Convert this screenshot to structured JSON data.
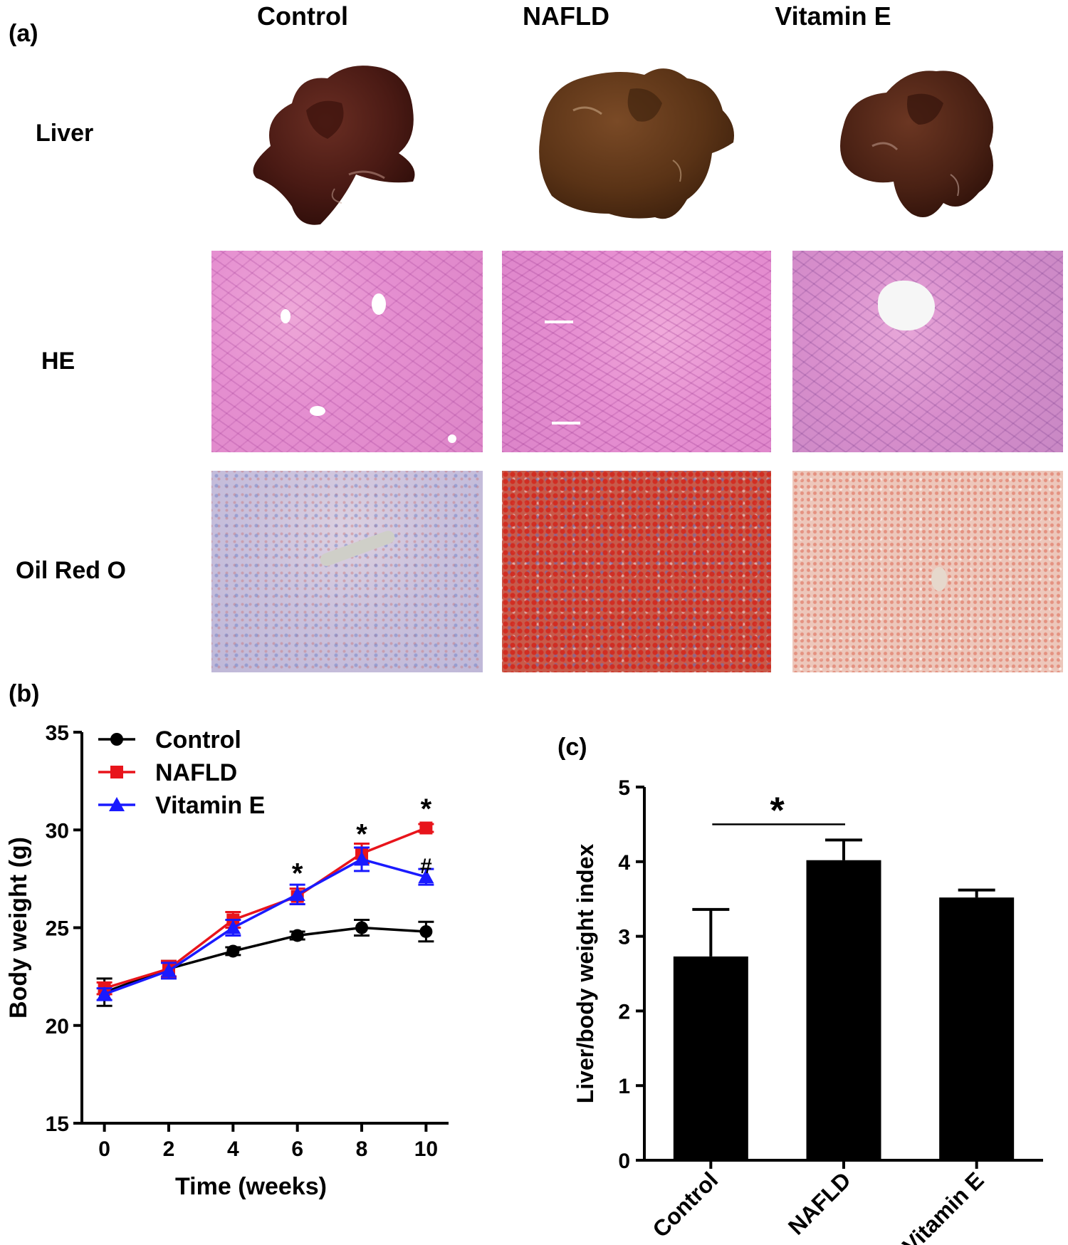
{
  "panel_a": {
    "letter": "(a)",
    "columns": [
      "Control",
      "NAFLD",
      "Vitamin E"
    ],
    "rows": [
      "Liver",
      "HE",
      "Oil Red O"
    ]
  },
  "panel_b": {
    "letter": "(b)"
  },
  "panel_c": {
    "letter": "(c)"
  },
  "colors": {
    "control": "#000000",
    "nafld": "#e8141b",
    "vitamin_e": "#1a1aff"
  },
  "chart_data": [
    {
      "type": "line",
      "xlabel": "Time (weeks)",
      "ylabel": "Body weight (g)",
      "x": [
        0,
        2,
        4,
        6,
        8,
        10
      ],
      "xticks": [
        0,
        2,
        4,
        6,
        8,
        10
      ],
      "yticks": [
        15,
        20,
        25,
        30,
        35
      ],
      "xlim": [
        -0.7,
        10.7
      ],
      "ylim": [
        15,
        35
      ],
      "legend_position": "top-left",
      "series": [
        {
          "name": "Control",
          "color": "#000000",
          "marker": "circle",
          "values": [
            21.7,
            22.9,
            23.8,
            24.6,
            25.0,
            24.8
          ],
          "errors": [
            0.7,
            0.4,
            0.2,
            0.2,
            0.4,
            0.5
          ]
        },
        {
          "name": "NAFLD",
          "color": "#e8141b",
          "marker": "square",
          "values": [
            21.9,
            22.9,
            25.4,
            26.6,
            28.8,
            30.1
          ],
          "errors": [
            0.3,
            0.4,
            0.4,
            0.4,
            0.5,
            0.2
          ]
        },
        {
          "name": "Vitamin E",
          "color": "#1a1aff",
          "marker": "triangle",
          "values": [
            21.6,
            22.8,
            25.0,
            26.7,
            28.5,
            27.6
          ],
          "errors": [
            0.3,
            0.4,
            0.4,
            0.5,
            0.6,
            0.4
          ]
        }
      ],
      "annotations": [
        {
          "text": "*",
          "x": 6,
          "y": 27.8
        },
        {
          "text": "*",
          "x": 8,
          "y": 29.8
        },
        {
          "text": "*",
          "x": 10,
          "y": 31.1
        },
        {
          "text": "#",
          "x": 10,
          "y": 28.3
        }
      ]
    },
    {
      "type": "bar",
      "ylabel": "Liver/body weight index",
      "categories": [
        "Control",
        "NAFLD",
        "Vitamin E"
      ],
      "values": [
        2.73,
        4.02,
        3.52
      ],
      "errors": [
        0.63,
        0.27,
        0.1
      ],
      "yticks": [
        0,
        1,
        2,
        3,
        4,
        5
      ],
      "ylim": [
        0,
        5
      ],
      "bar_color": "#000000",
      "significance": {
        "text": "*",
        "from": "Control",
        "to": "NAFLD",
        "y": 4.5
      }
    }
  ]
}
